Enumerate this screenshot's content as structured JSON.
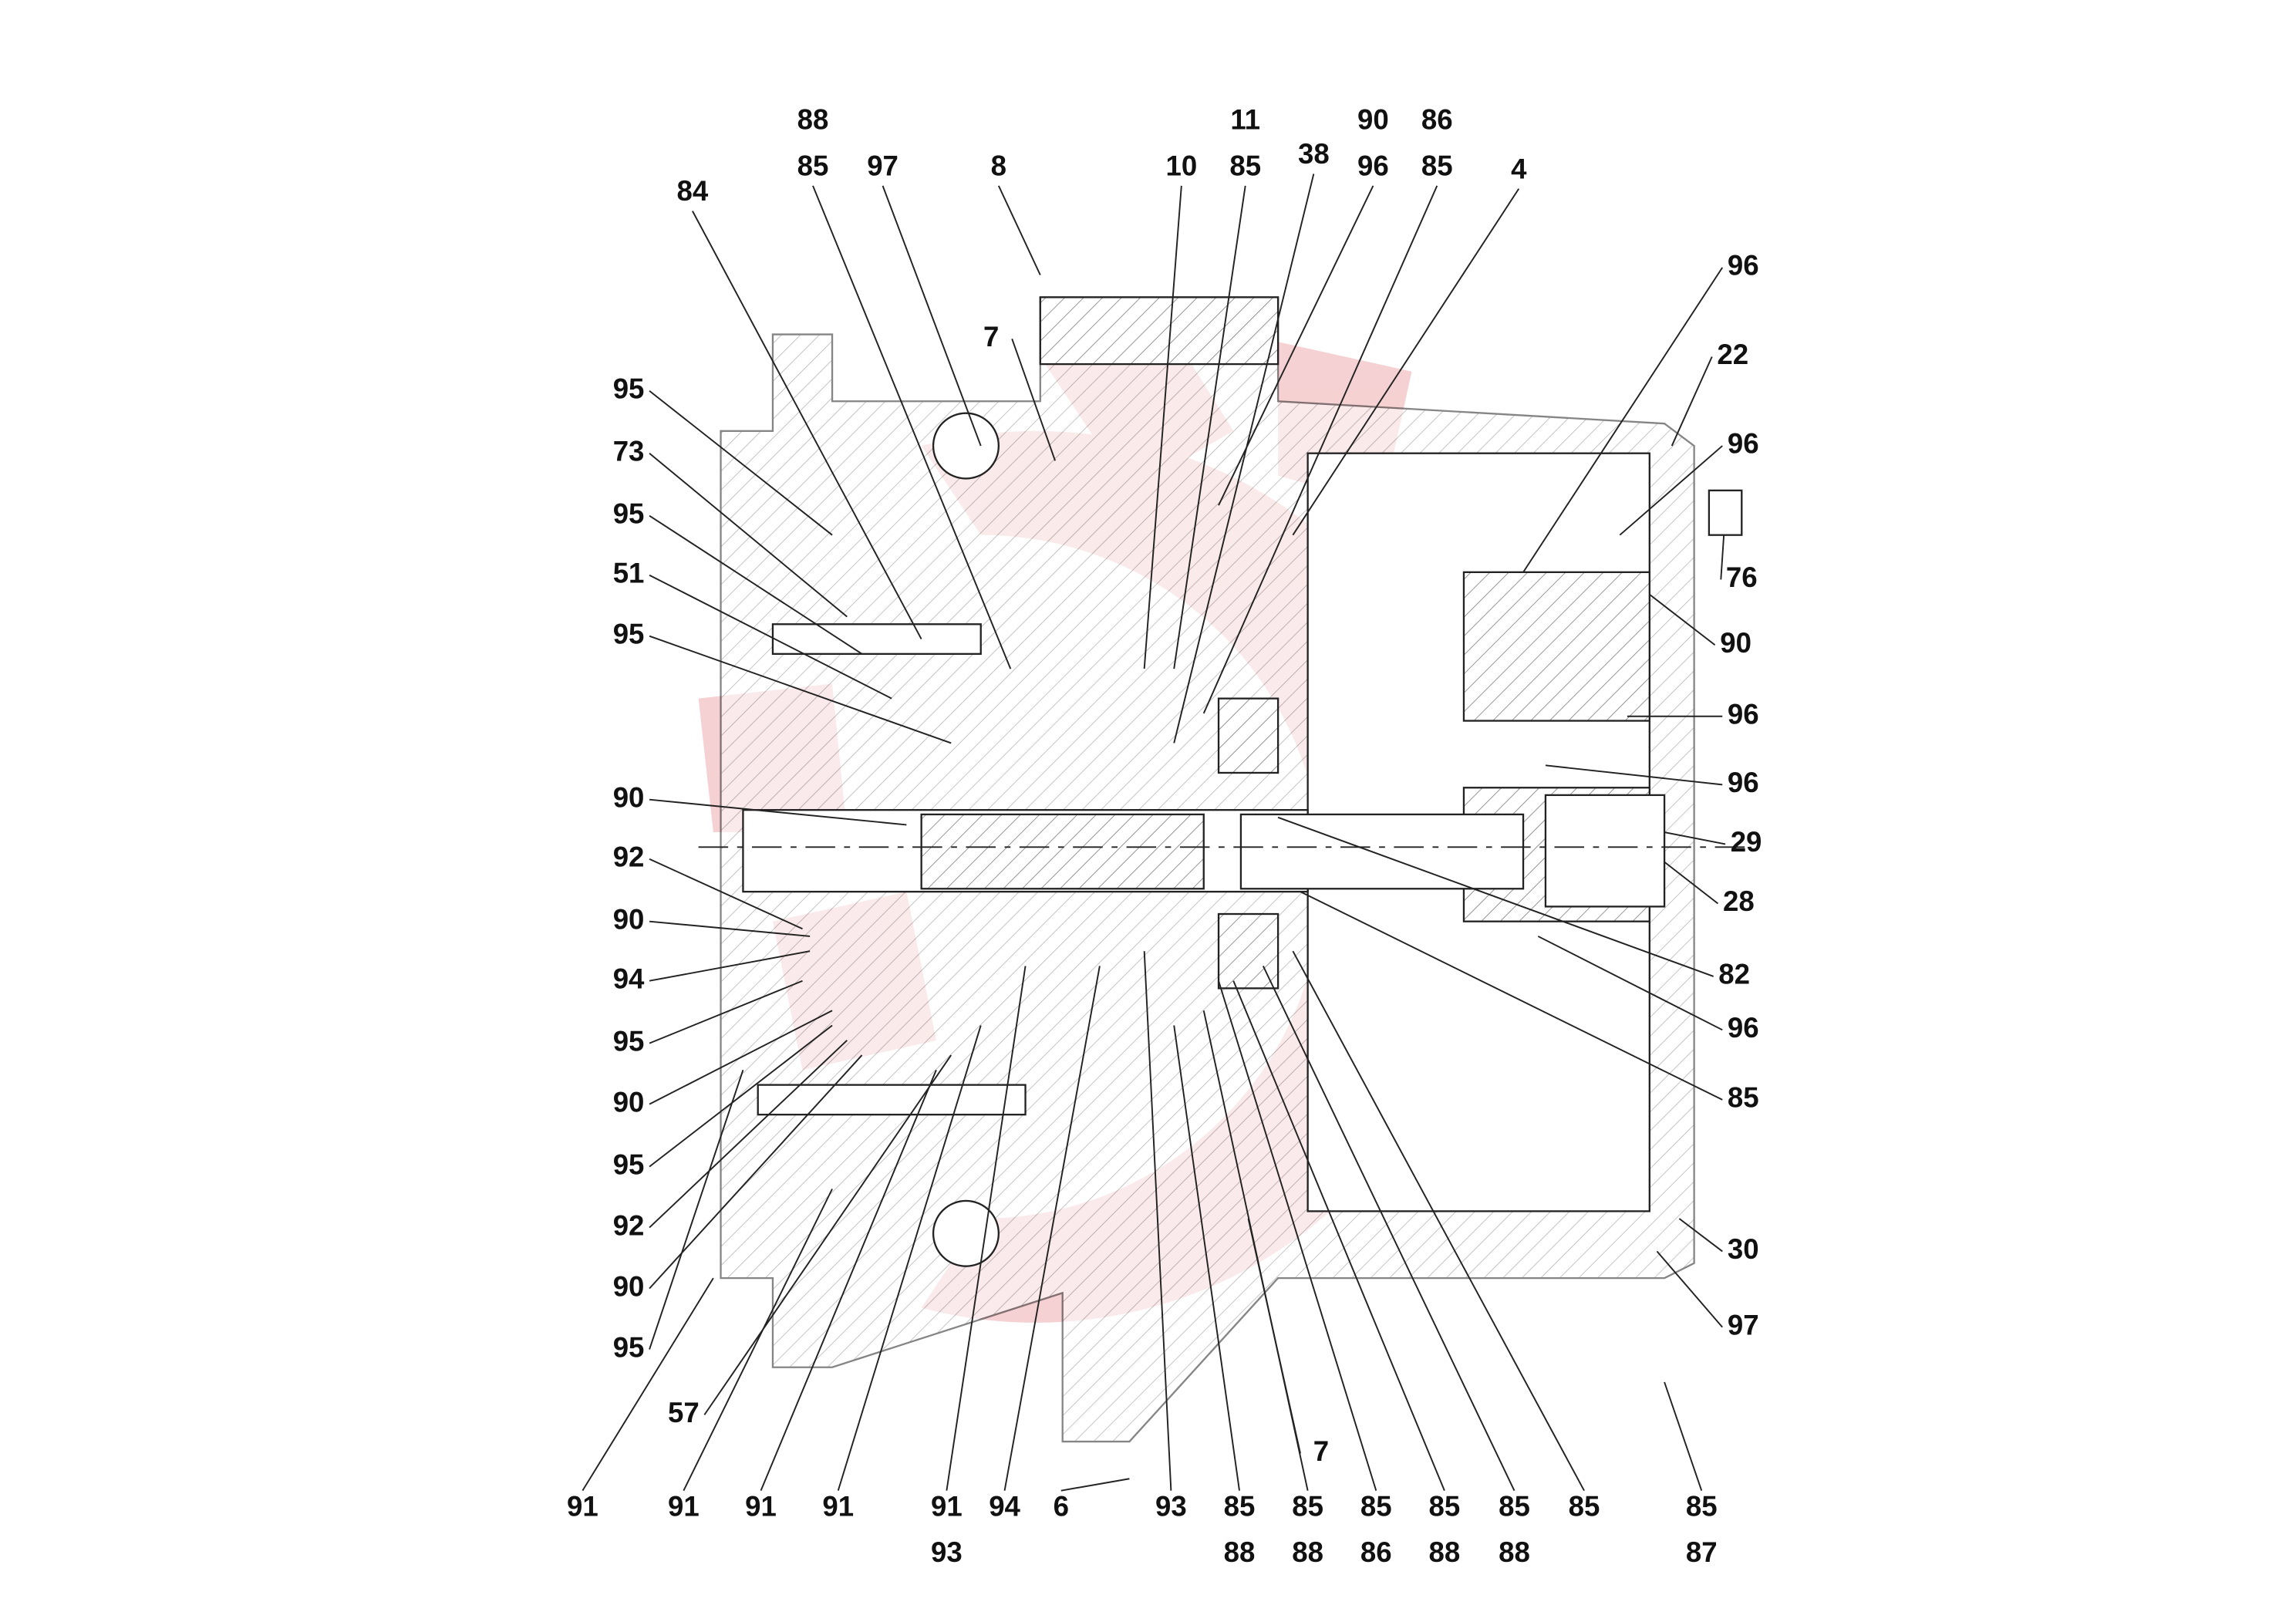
{
  "callouts": [
    "88",
    "85",
    "97",
    "8",
    "84",
    "10",
    "11",
    "85",
    "38",
    "90",
    "96",
    "86",
    "85",
    "4",
    "7",
    "96",
    "22",
    "96",
    "76",
    "90",
    "96",
    "96",
    "29",
    "28",
    "82",
    "96",
    "85",
    "30",
    "97",
    "95",
    "73",
    "95",
    "51",
    "95",
    "90",
    "92",
    "90",
    "94",
    "95",
    "90",
    "95",
    "92",
    "90",
    "95",
    "57",
    "91",
    "91",
    "91",
    "91",
    "91",
    "93",
    "94",
    "6",
    "93",
    "85",
    "88",
    "85",
    "88",
    "7",
    "85",
    "86",
    "85",
    "88",
    "85",
    "88",
    "85",
    "85",
    "87"
  ]
}
